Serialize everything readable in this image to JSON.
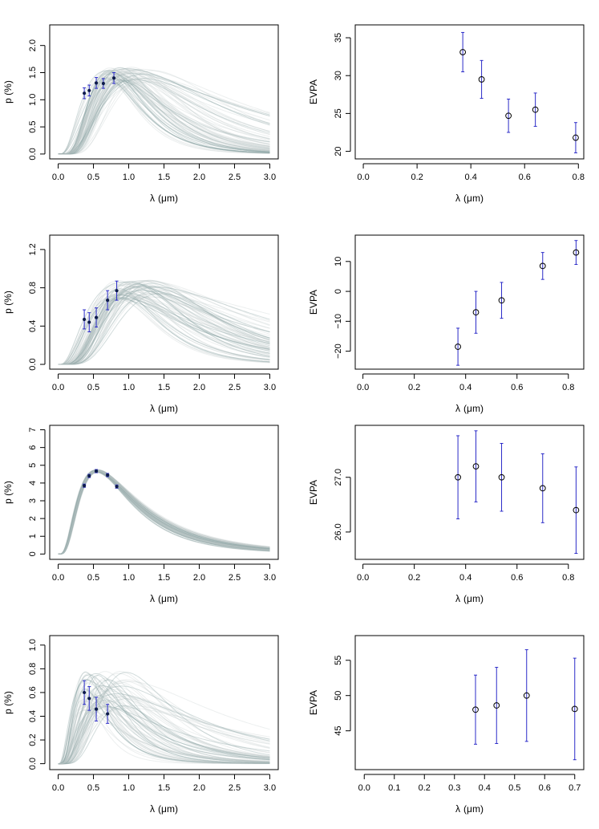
{
  "colors": {
    "model_curves": "#b9c7c6",
    "model_dense": "#7f9c9b",
    "points_left": "#0d1a4a",
    "errorbars": "#2b2bc8",
    "axis": "#000000"
  },
  "chart_data": [
    {
      "id": "p1",
      "type": "line",
      "xlabel_symbol": "λ",
      "xlabel_units": "(μm)",
      "ylabel": "p (%)",
      "xlim": [
        -0.12,
        3.12
      ],
      "ylim": [
        -0.09,
        2.38
      ],
      "xticks": [
        0,
        0.5,
        1,
        1.5,
        2,
        2.5,
        3
      ],
      "xtick_labels": [
        "0.0",
        "0.5",
        "1.0",
        "1.5",
        "2.0",
        "2.5",
        "3.0"
      ],
      "yticks": [
        0,
        0.5,
        1,
        1.5,
        2
      ],
      "ytick_labels": [
        "0.0",
        "0.5",
        "1.0",
        "1.5",
        "2.0"
      ],
      "model": {
        "pmax_range": [
          1.3,
          1.6
        ],
        "lmax_range": [
          0.68,
          1.35
        ],
        "K_range": [
          0.62,
          2.6
        ]
      },
      "points": [
        {
          "x": 0.37,
          "y": 1.12,
          "err": 0.1
        },
        {
          "x": 0.44,
          "y": 1.17,
          "err": 0.1
        },
        {
          "x": 0.54,
          "y": 1.31,
          "err": 0.1
        },
        {
          "x": 0.64,
          "y": 1.3,
          "err": 0.09
        },
        {
          "x": 0.79,
          "y": 1.4,
          "err": 0.1
        }
      ]
    },
    {
      "id": "e1",
      "type": "scatter",
      "xlabel_symbol": "λ",
      "xlabel_units": "(μm)",
      "ylabel": "EVPA",
      "xlim": [
        -0.03,
        0.82
      ],
      "ylim": [
        19.0,
        36.7
      ],
      "xticks": [
        0,
        0.2,
        0.4,
        0.6,
        0.8
      ],
      "xtick_labels": [
        "0.0",
        "0.2",
        "0.4",
        "0.6",
        "0.8"
      ],
      "yticks": [
        20,
        25,
        30,
        35
      ],
      "ytick_labels": [
        "20",
        "25",
        "30",
        "35"
      ],
      "points": [
        {
          "x": 0.37,
          "y": 33.1,
          "err": 2.6
        },
        {
          "x": 0.44,
          "y": 29.5,
          "err": 2.5
        },
        {
          "x": 0.54,
          "y": 24.7,
          "err": 2.2
        },
        {
          "x": 0.64,
          "y": 25.5,
          "err": 2.2
        },
        {
          "x": 0.79,
          "y": 21.8,
          "err": 2.0
        }
      ]
    },
    {
      "id": "p2",
      "type": "line",
      "xlabel_symbol": "λ",
      "xlabel_units": "(μm)",
      "ylabel": "p (%)",
      "xlim": [
        -0.12,
        3.12
      ],
      "ylim": [
        -0.05,
        1.35
      ],
      "xticks": [
        0,
        0.5,
        1,
        1.5,
        2,
        2.5,
        3
      ],
      "xtick_labels": [
        "0.0",
        "0.5",
        "1.0",
        "1.5",
        "2.0",
        "2.5",
        "3.0"
      ],
      "yticks": [
        0,
        0.4,
        0.8,
        1.2
      ],
      "ytick_labels": [
        "0.0",
        "0.4",
        "0.8",
        "1.2"
      ],
      "model": {
        "pmax_range": [
          0.68,
          0.88
        ],
        "lmax_range": [
          0.85,
          1.5
        ],
        "K_range": [
          0.6,
          2.4
        ]
      },
      "points": [
        {
          "x": 0.37,
          "y": 0.47,
          "err": 0.1
        },
        {
          "x": 0.44,
          "y": 0.44,
          "err": 0.1
        },
        {
          "x": 0.54,
          "y": 0.49,
          "err": 0.1
        },
        {
          "x": 0.7,
          "y": 0.67,
          "err": 0.1
        },
        {
          "x": 0.83,
          "y": 0.77,
          "err": 0.1
        }
      ]
    },
    {
      "id": "e2",
      "type": "scatter",
      "xlabel_symbol": "λ",
      "xlabel_units": "(μm)",
      "ylabel": "EVPA",
      "xlim": [
        -0.03,
        0.86
      ],
      "ylim": [
        -26.0,
        18.8
      ],
      "xticks": [
        0,
        0.2,
        0.4,
        0.6,
        0.8
      ],
      "xtick_labels": [
        "0.0",
        "0.2",
        "0.4",
        "0.6",
        "0.8"
      ],
      "yticks": [
        -20,
        -10,
        0,
        10
      ],
      "ytick_labels": [
        "−20",
        "−10",
        "0",
        "10"
      ],
      "points": [
        {
          "x": 0.37,
          "y": -18.5,
          "err": 6.2
        },
        {
          "x": 0.44,
          "y": -7.0,
          "err": 7.0
        },
        {
          "x": 0.54,
          "y": -3.0,
          "err": 6.0
        },
        {
          "x": 0.7,
          "y": 8.5,
          "err": 4.5
        },
        {
          "x": 0.83,
          "y": 13.0,
          "err": 4.0
        }
      ]
    },
    {
      "id": "p3",
      "type": "line",
      "xlabel_symbol": "λ",
      "xlabel_units": "(μm)",
      "ylabel": "p (%)",
      "xlim": [
        -0.12,
        3.12
      ],
      "ylim": [
        -0.3,
        7.25
      ],
      "xticks": [
        0,
        0.5,
        1,
        1.5,
        2,
        2.5,
        3
      ],
      "xtick_labels": [
        "0.0",
        "0.5",
        "1.0",
        "1.5",
        "2.0",
        "2.5",
        "3.0"
      ],
      "yticks": [
        0,
        1,
        2,
        3,
        4,
        5,
        6,
        7
      ],
      "ytick_labels": [
        "0",
        "1",
        "2",
        "3",
        "4",
        "5",
        "6",
        "7"
      ],
      "model": {
        "pmax_range": [
          4.6,
          4.75
        ],
        "lmax_range": [
          0.53,
          0.58
        ],
        "K_range": [
          0.85,
          1.15
        ]
      },
      "points": [
        {
          "x": 0.37,
          "y": 3.85,
          "err": 0.09
        },
        {
          "x": 0.44,
          "y": 4.4,
          "err": 0.09
        },
        {
          "x": 0.54,
          "y": 4.67,
          "err": 0.09
        },
        {
          "x": 0.7,
          "y": 4.45,
          "err": 0.09
        },
        {
          "x": 0.83,
          "y": 3.8,
          "err": 0.09
        }
      ]
    },
    {
      "id": "e3",
      "type": "scatter",
      "xlabel_symbol": "λ",
      "xlabel_units": "(μm)",
      "ylabel": "EVPA",
      "xlim": [
        -0.03,
        0.86
      ],
      "ylim": [
        25.5,
        27.95
      ],
      "xticks": [
        0,
        0.2,
        0.4,
        0.6,
        0.8
      ],
      "xtick_labels": [
        "0.0",
        "0.2",
        "0.4",
        "0.6",
        "0.8"
      ],
      "yticks": [
        26,
        27
      ],
      "ytick_labels": [
        "26.0",
        "27.0"
      ],
      "points": [
        {
          "x": 0.37,
          "y": 27.0,
          "err": 0.76
        },
        {
          "x": 0.44,
          "y": 27.2,
          "err": 0.65
        },
        {
          "x": 0.54,
          "y": 27.0,
          "err": 0.62
        },
        {
          "x": 0.7,
          "y": 26.8,
          "err": 0.63
        },
        {
          "x": 0.83,
          "y": 26.4,
          "err": 0.79
        }
      ]
    },
    {
      "id": "p4",
      "type": "line",
      "xlabel_symbol": "λ",
      "xlabel_units": "(μm)",
      "ylabel": "p (%)",
      "xlim": [
        -0.12,
        3.12
      ],
      "ylim": [
        -0.05,
        1.08
      ],
      "xticks": [
        0,
        0.5,
        1,
        1.5,
        2,
        2.5,
        3
      ],
      "xtick_labels": [
        "0.0",
        "0.5",
        "1.0",
        "1.5",
        "2.0",
        "2.5",
        "3.0"
      ],
      "yticks": [
        0,
        0.2,
        0.4,
        0.6,
        0.8,
        1.0
      ],
      "ytick_labels": [
        "0.0",
        "0.2",
        "0.4",
        "0.6",
        "0.8",
        "1.0"
      ],
      "model": {
        "pmax_range": [
          0.45,
          0.8
        ],
        "lmax_range": [
          0.38,
          1.15
        ],
        "K_range": [
          0.6,
          2.0
        ]
      },
      "points": [
        {
          "x": 0.37,
          "y": 0.6,
          "err": 0.1
        },
        {
          "x": 0.44,
          "y": 0.55,
          "err": 0.1
        },
        {
          "x": 0.54,
          "y": 0.46,
          "err": 0.1
        },
        {
          "x": 0.7,
          "y": 0.42,
          "err": 0.08
        }
      ]
    },
    {
      "id": "e4",
      "type": "scatter",
      "xlabel_symbol": "λ",
      "xlabel_units": "(μm)",
      "ylabel": "EVPA",
      "xlim": [
        -0.03,
        0.73
      ],
      "ylim": [
        39.5,
        58.5
      ],
      "xticks": [
        0,
        0.1,
        0.2,
        0.3,
        0.4,
        0.5,
        0.6,
        0.7
      ],
      "xtick_labels": [
        "0.0",
        "0.1",
        "0.2",
        "0.3",
        "0.4",
        "0.5",
        "0.6",
        "0.7"
      ],
      "yticks": [
        45,
        50,
        55
      ],
      "ytick_labels": [
        "45",
        "50",
        "55"
      ],
      "points": [
        {
          "x": 0.37,
          "y": 48.0,
          "err": 4.9
        },
        {
          "x": 0.44,
          "y": 48.6,
          "err": 5.4
        },
        {
          "x": 0.54,
          "y": 50.0,
          "err": 6.5
        },
        {
          "x": 0.7,
          "y": 48.1,
          "err": 7.2
        }
      ]
    }
  ]
}
